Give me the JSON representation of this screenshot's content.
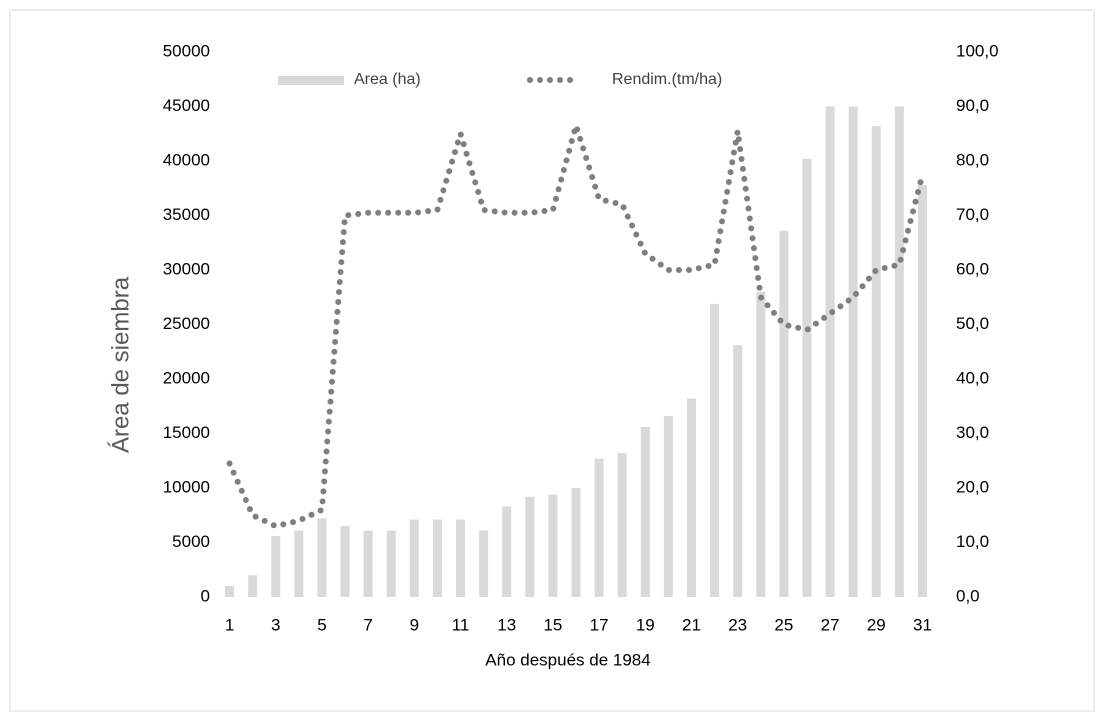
{
  "chart_data": {
    "type": "bar-line",
    "x_label": "Año después de 1984",
    "y_label": "Área de siembra",
    "categories": [
      "1",
      null,
      "3",
      null,
      "5",
      null,
      "7",
      null,
      "9",
      null,
      "11",
      null,
      "13",
      null,
      "15",
      null,
      "17",
      null,
      "19",
      null,
      "21",
      null,
      "23",
      null,
      "25",
      null,
      "27",
      null,
      "29",
      null,
      "31"
    ],
    "series": [
      {
        "name": "Area (ha)",
        "color": "#d9d9d9",
        "values": [
          1000,
          2000,
          5600,
          6100,
          7200,
          6500,
          6100,
          6100,
          7100,
          7100,
          7100,
          6100,
          8300,
          9200,
          9400,
          10000,
          12700,
          13200,
          15600,
          16600,
          18200,
          26900,
          23100,
          28000,
          33600,
          40200,
          45000,
          45000,
          43200,
          45000,
          37800
        ]
      },
      {
        "name": "Rendim.(tm/ha)",
        "color": "#7f7f7f",
        "axis": "y2",
        "values": [
          24.5,
          15,
          13,
          14,
          16,
          70,
          70.5,
          70.5,
          70.5,
          71,
          85,
          71,
          70.5,
          70.5,
          71,
          86.5,
          73,
          72,
          63,
          60,
          60,
          61,
          85.5,
          55,
          50,
          49,
          52,
          55,
          60,
          61,
          77.5
        ]
      }
    ],
    "ylim": [
      0,
      50000
    ],
    "yticks": [
      0,
      5000,
      10000,
      15000,
      20000,
      25000,
      30000,
      35000,
      40000,
      45000,
      50000
    ],
    "y2lim": [
      0,
      100
    ],
    "y2ticks": [
      {
        "value": 0,
        "label": "0,0"
      },
      {
        "value": 10,
        "label": "10,0"
      },
      {
        "value": 20,
        "label": "20,0"
      },
      {
        "value": 30,
        "label": "30,0"
      },
      {
        "value": 40,
        "label": "40,0"
      },
      {
        "value": 50,
        "label": "50,0"
      },
      {
        "value": 60,
        "label": "60,0"
      },
      {
        "value": 70,
        "label": "70,0"
      },
      {
        "value": 80,
        "label": "80,0"
      },
      {
        "value": 90,
        "label": "90,0"
      },
      {
        "value": 100,
        "label": "100,0"
      }
    ]
  }
}
